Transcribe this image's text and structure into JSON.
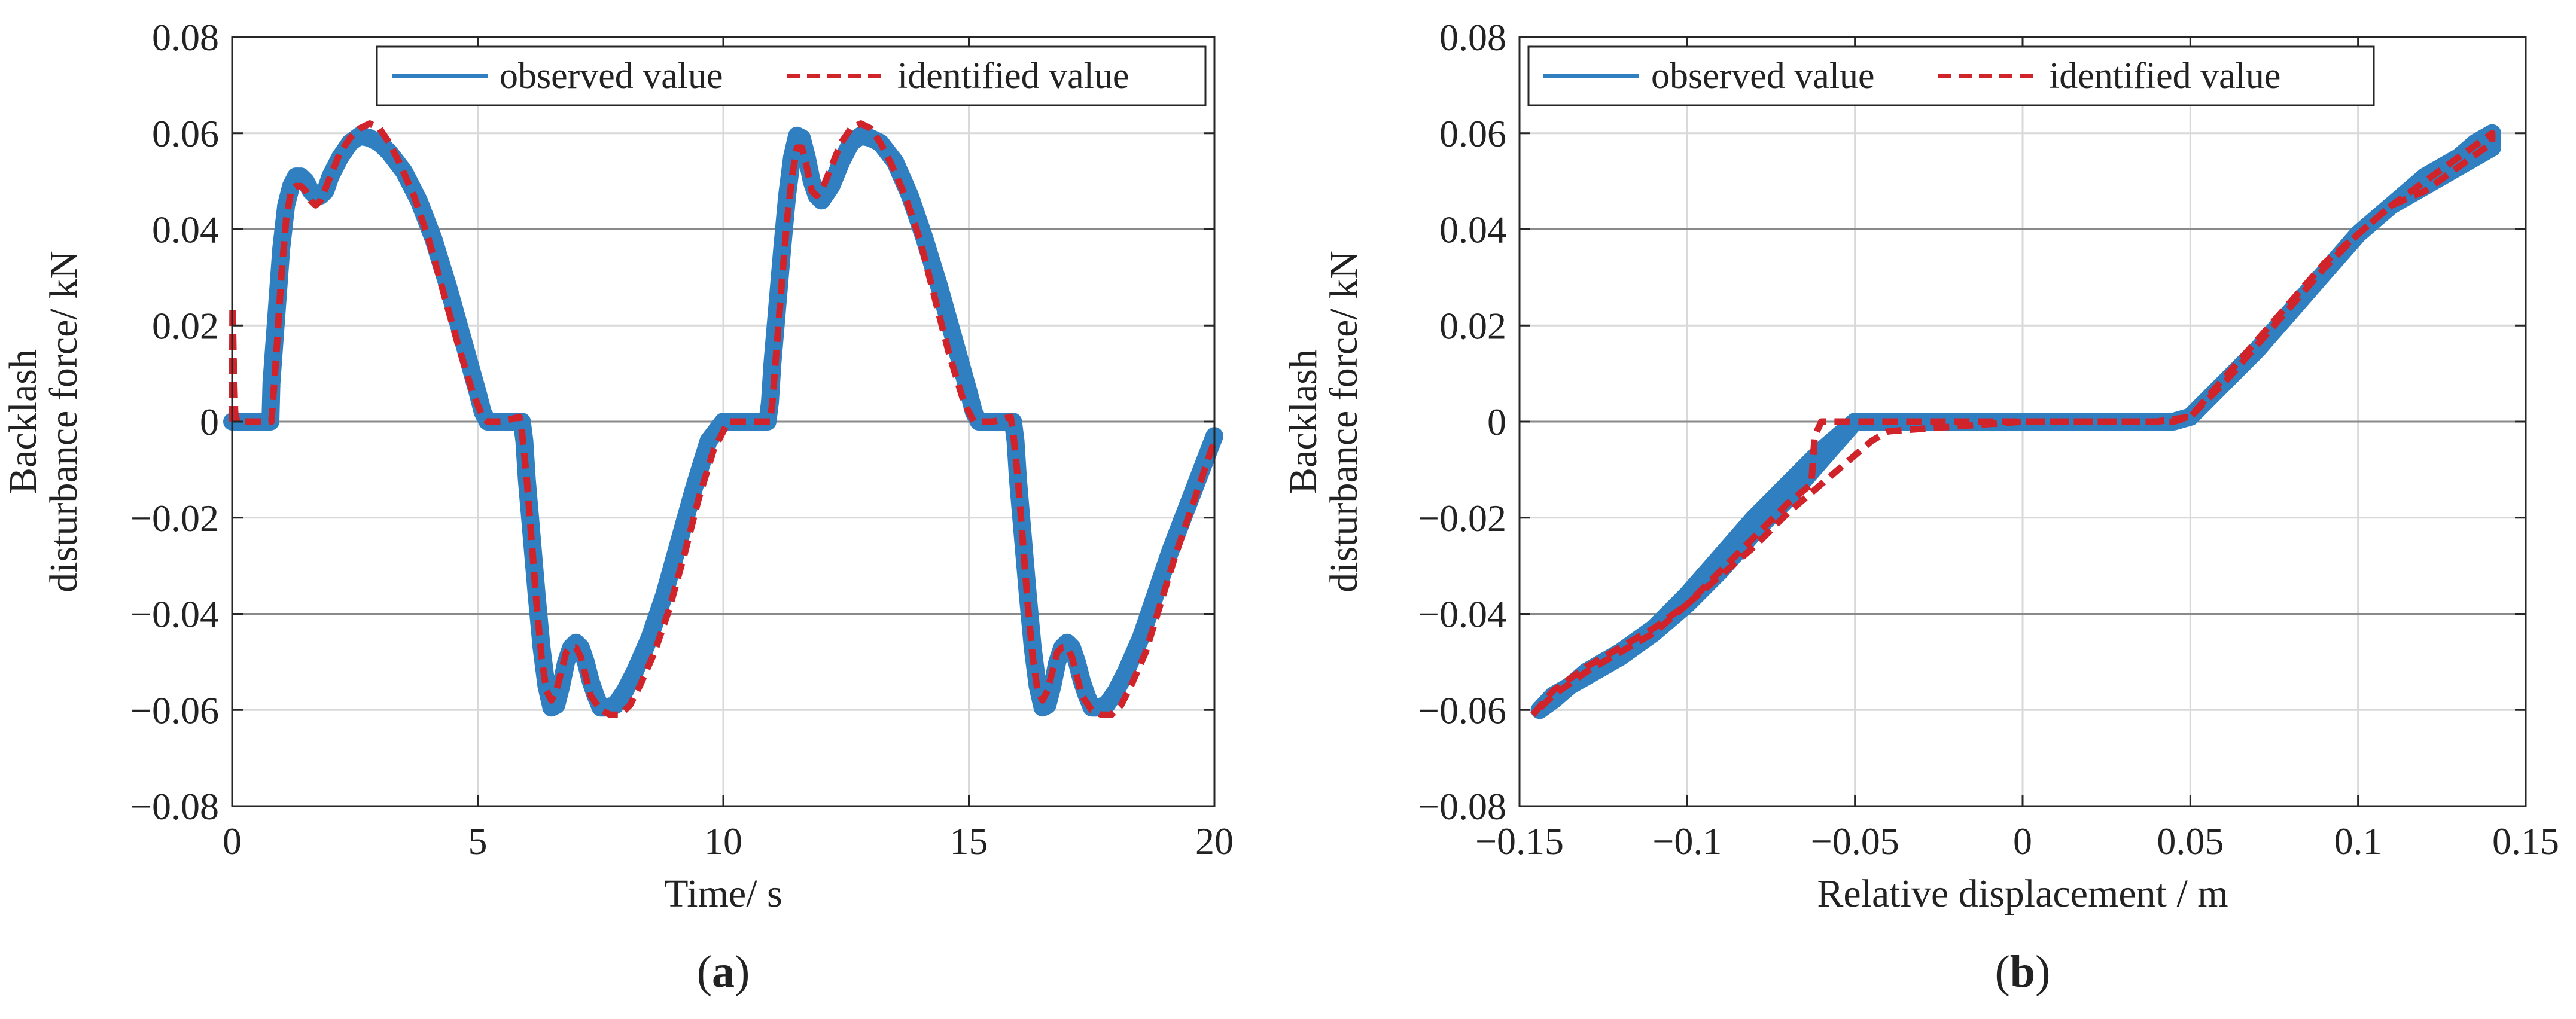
{
  "chart_data": [
    {
      "type": "line",
      "panel": "a",
      "caption_letter": "a",
      "xlabel": "Time/ s",
      "ylabel_line1": "Backlash",
      "ylabel_line2": "disturbance force/ kN",
      "xlim": [
        0,
        20
      ],
      "ylim": [
        -0.08,
        0.08
      ],
      "xticks": [
        0,
        5,
        10,
        15,
        20
      ],
      "xtick_labels": [
        "0",
        "5",
        "10",
        "15",
        "20"
      ],
      "yticks": [
        -0.08,
        -0.06,
        -0.04,
        -0.02,
        0,
        0.02,
        0.04,
        0.06,
        0.08
      ],
      "ytick_labels": [
        "−0.08",
        "−0.06",
        "−0.04",
        "−0.02",
        "0",
        "0.02",
        "0.04",
        "0.06",
        "0.08"
      ],
      "grid": true,
      "legend_position": "top-right",
      "series": [
        {
          "name": "observed value",
          "color": "#2f7fc1",
          "style": "solid-thick",
          "x": [
            0,
            0.02,
            0.5,
            0.78,
            0.8,
            0.9,
            1.0,
            1.1,
            1.2,
            1.3,
            1.4,
            1.5,
            1.6,
            1.7,
            1.8,
            1.9,
            2.0,
            2.2,
            2.4,
            2.6,
            2.8,
            3.0,
            3.2,
            3.5,
            3.8,
            4.1,
            4.4,
            4.7,
            5.0,
            5.1,
            5.2,
            5.5,
            5.9,
            5.95,
            6.0,
            6.1,
            6.2,
            6.3,
            6.4,
            6.5,
            6.6,
            6.7,
            6.8,
            6.9,
            7.0,
            7.1,
            7.2,
            7.3,
            7.4,
            7.5,
            7.6,
            7.8,
            8.0,
            8.2,
            8.5,
            8.8,
            9.1,
            9.4,
            9.7,
            10.0,
            10.1,
            10.2,
            10.5,
            10.9,
            10.95,
            11.0,
            11.1,
            11.2,
            11.3,
            11.4,
            11.5,
            11.6,
            11.7,
            11.8,
            11.9,
            12.0,
            12.2,
            12.4,
            12.6,
            12.8,
            13.0,
            13.2,
            13.5,
            13.8,
            14.1,
            14.4,
            14.7,
            15.0,
            15.1,
            15.2,
            15.5,
            15.9,
            15.95,
            16.0,
            16.1,
            16.2,
            16.3,
            16.4,
            16.5,
            16.6,
            16.7,
            16.8,
            16.9,
            17.0,
            17.1,
            17.2,
            17.3,
            17.4,
            17.5,
            17.6,
            17.8,
            18.0,
            18.2,
            18.5,
            18.8,
            19.1,
            19.4,
            19.7,
            20.0
          ],
          "y": [
            0,
            0,
            0,
            0,
            0.008,
            0.022,
            0.036,
            0.045,
            0.049,
            0.051,
            0.051,
            0.05,
            0.048,
            0.047,
            0.047,
            0.048,
            0.051,
            0.055,
            0.058,
            0.0595,
            0.059,
            0.058,
            0.056,
            0.052,
            0.046,
            0.038,
            0.028,
            0.017,
            0.006,
            0.002,
            0.0,
            0.0,
            0.0,
            -0.004,
            -0.012,
            -0.024,
            -0.036,
            -0.047,
            -0.055,
            -0.0595,
            -0.059,
            -0.055,
            -0.05,
            -0.047,
            -0.046,
            -0.047,
            -0.05,
            -0.054,
            -0.057,
            -0.0595,
            -0.0595,
            -0.059,
            -0.056,
            -0.052,
            -0.045,
            -0.036,
            -0.025,
            -0.014,
            -0.004,
            0.0,
            0.0,
            0.0,
            0.0,
            0.0,
            0.004,
            0.012,
            0.024,
            0.036,
            0.047,
            0.055,
            0.0595,
            0.059,
            0.055,
            0.05,
            0.047,
            0.046,
            0.049,
            0.054,
            0.058,
            0.0595,
            0.059,
            0.058,
            0.054,
            0.047,
            0.038,
            0.028,
            0.017,
            0.006,
            0.002,
            0.0,
            0.0,
            0.0,
            -0.004,
            -0.012,
            -0.024,
            -0.036,
            -0.047,
            -0.055,
            -0.0595,
            -0.059,
            -0.055,
            -0.05,
            -0.047,
            -0.046,
            -0.047,
            -0.05,
            -0.054,
            -0.057,
            -0.0595,
            -0.0595,
            -0.059,
            -0.056,
            -0.052,
            -0.045,
            -0.036,
            -0.027,
            -0.019,
            -0.011,
            -0.003
          ]
        },
        {
          "name": "identified value",
          "color": "#d0232a",
          "style": "dashed",
          "x": [
            0,
            0.01,
            0.03,
            0.06,
            0.1,
            0.5,
            0.8,
            0.9,
            1.0,
            1.1,
            1.2,
            1.3,
            1.4,
            1.5,
            1.6,
            1.7,
            1.8,
            2.0,
            2.2,
            2.4,
            2.6,
            2.8,
            3.0,
            3.2,
            3.4,
            3.7,
            4.0,
            4.3,
            4.6,
            4.9,
            5.1,
            5.2,
            5.5,
            5.85,
            5.9,
            6.0,
            6.1,
            6.2,
            6.3,
            6.4,
            6.5,
            6.6,
            6.7,
            6.8,
            6.9,
            7.0,
            7.1,
            7.2,
            7.3,
            7.5,
            7.7,
            7.9,
            8.1,
            8.3,
            8.6,
            8.9,
            9.2,
            9.5,
            9.8,
            10.1,
            10.2,
            10.5,
            10.95,
            11.0,
            11.1,
            11.2,
            11.3,
            11.4,
            11.5,
            11.6,
            11.7,
            11.8,
            11.9,
            12.0,
            12.2,
            12.4,
            12.6,
            12.8,
            13.0,
            13.2,
            13.4,
            13.7,
            14.0,
            14.3,
            14.6,
            14.9,
            15.1,
            15.2,
            15.5,
            15.85,
            15.9,
            16.0,
            16.1,
            16.2,
            16.3,
            16.4,
            16.5,
            16.6,
            16.7,
            16.8,
            16.9,
            17.0,
            17.1,
            17.2,
            17.3,
            17.5,
            17.7,
            17.9,
            18.1,
            18.3,
            18.6,
            18.9,
            19.2,
            19.5,
            19.8,
            20.0
          ],
          "y": [
            0.0,
            0.024,
            0.012,
            0.002,
            0.0,
            0.0,
            0.0,
            0.014,
            0.03,
            0.042,
            0.048,
            0.049,
            0.049,
            0.048,
            0.046,
            0.045,
            0.046,
            0.051,
            0.056,
            0.059,
            0.061,
            0.062,
            0.061,
            0.058,
            0.054,
            0.047,
            0.038,
            0.027,
            0.016,
            0.006,
            0.001,
            0.0,
            0.0,
            0.001,
            -0.002,
            -0.012,
            -0.025,
            -0.038,
            -0.049,
            -0.056,
            -0.058,
            -0.056,
            -0.052,
            -0.048,
            -0.047,
            -0.047,
            -0.049,
            -0.053,
            -0.057,
            -0.06,
            -0.061,
            -0.061,
            -0.059,
            -0.055,
            -0.048,
            -0.039,
            -0.028,
            -0.016,
            -0.006,
            0.0,
            0.0,
            0.0,
            0.0,
            0.004,
            0.017,
            0.03,
            0.042,
            0.051,
            0.057,
            0.057,
            0.053,
            0.048,
            0.047,
            0.048,
            0.053,
            0.058,
            0.061,
            0.062,
            0.061,
            0.058,
            0.054,
            0.047,
            0.038,
            0.026,
            0.014,
            0.004,
            0.0,
            0.0,
            0.0,
            0.001,
            -0.002,
            -0.012,
            -0.025,
            -0.038,
            -0.049,
            -0.056,
            -0.058,
            -0.056,
            -0.052,
            -0.048,
            -0.047,
            -0.047,
            -0.049,
            -0.053,
            -0.057,
            -0.06,
            -0.061,
            -0.061,
            -0.059,
            -0.055,
            -0.048,
            -0.038,
            -0.028,
            -0.019,
            -0.01,
            -0.004
          ]
        }
      ]
    },
    {
      "type": "line",
      "panel": "b",
      "caption_letter": "b",
      "xlabel": "Relative displacement / m",
      "ylabel_line1": "Backlash",
      "ylabel_line2": "disturbance force/ kN",
      "xlim": [
        -0.15,
        0.15
      ],
      "ylim": [
        -0.08,
        0.08
      ],
      "xticks": [
        -0.15,
        -0.1,
        -0.05,
        0,
        0.05,
        0.1,
        0.15
      ],
      "xtick_labels": [
        "−0.15",
        "−0.1",
        "−0.05",
        "0",
        "0.05",
        "0.1",
        "0.15"
      ],
      "yticks": [
        -0.08,
        -0.06,
        -0.04,
        -0.02,
        0,
        0.02,
        0.04,
        0.06,
        0.08
      ],
      "ytick_labels": [
        "−0.08",
        "−0.06",
        "−0.04",
        "−0.02",
        "0",
        "0.02",
        "0.04",
        "0.06",
        "0.08"
      ],
      "grid": true,
      "legend_position": "top-left",
      "series": [
        {
          "name": "observed value",
          "color": "#2f7fc1",
          "style": "solid-thick",
          "x": [
            -0.144,
            -0.14,
            -0.135,
            -0.13,
            -0.12,
            -0.11,
            -0.1,
            -0.09,
            -0.08,
            -0.07,
            -0.06,
            -0.055,
            -0.05,
            -0.045,
            0.0,
            0.045,
            0.05,
            0.06,
            0.07,
            0.08,
            0.09,
            0.1,
            0.11,
            0.12,
            0.13,
            0.14,
            0.14,
            0.135,
            0.13,
            0.12,
            0.11,
            0.1,
            0.09,
            0.08,
            0.07,
            0.06,
            0.05,
            0.045,
            0.0,
            -0.045,
            -0.05,
            -0.055,
            -0.06,
            -0.07,
            -0.08,
            -0.09,
            -0.1,
            -0.11,
            -0.12,
            -0.13,
            -0.14,
            -0.144
          ],
          "y": [
            -0.06,
            -0.058,
            -0.055,
            -0.052,
            -0.048,
            -0.043,
            -0.036,
            -0.028,
            -0.02,
            -0.013,
            -0.006,
            -0.003,
            0.0,
            0.0,
            0.0,
            0.0,
            0.001,
            0.008,
            0.015,
            0.023,
            0.031,
            0.039,
            0.045,
            0.049,
            0.053,
            0.057,
            0.06,
            0.058,
            0.055,
            0.051,
            0.045,
            0.039,
            0.031,
            0.023,
            0.015,
            0.008,
            0.001,
            0.0,
            0.0,
            0.0,
            0.0,
            -0.004,
            -0.008,
            -0.016,
            -0.023,
            -0.031,
            -0.038,
            -0.044,
            -0.049,
            -0.053,
            -0.057,
            -0.06
          ]
        },
        {
          "name": "identified value",
          "color": "#d0232a",
          "style": "dashed",
          "x": [
            -0.146,
            -0.14,
            -0.13,
            -0.12,
            -0.11,
            -0.1,
            -0.09,
            -0.08,
            -0.07,
            -0.06,
            -0.05,
            -0.045,
            -0.04,
            0.0,
            0.04,
            0.05,
            0.06,
            0.07,
            0.08,
            0.09,
            0.1,
            0.11,
            0.12,
            0.13,
            0.14,
            0.14,
            0.13,
            0.12,
            0.11,
            0.1,
            0.09,
            0.08,
            0.07,
            0.06,
            0.05,
            0.045,
            0.0,
            -0.04,
            -0.05,
            -0.06,
            -0.062,
            -0.063,
            -0.07,
            -0.08,
            -0.09,
            -0.1,
            -0.11,
            -0.12,
            -0.13,
            -0.14,
            -0.146
          ],
          "y": [
            -0.061,
            -0.056,
            -0.051,
            -0.047,
            -0.043,
            -0.038,
            -0.032,
            -0.026,
            -0.019,
            -0.013,
            -0.007,
            -0.004,
            -0.002,
            0.0,
            0.0,
            0.001,
            0.009,
            0.017,
            0.025,
            0.033,
            0.039,
            0.045,
            0.048,
            0.053,
            0.058,
            0.06,
            0.055,
            0.05,
            0.045,
            0.039,
            0.032,
            0.024,
            0.016,
            0.008,
            0.001,
            0.0,
            0.0,
            0.0,
            0.0,
            0.0,
            -0.003,
            -0.013,
            -0.017,
            -0.024,
            -0.031,
            -0.038,
            -0.044,
            -0.048,
            -0.052,
            -0.057,
            -0.061
          ]
        }
      ]
    }
  ]
}
